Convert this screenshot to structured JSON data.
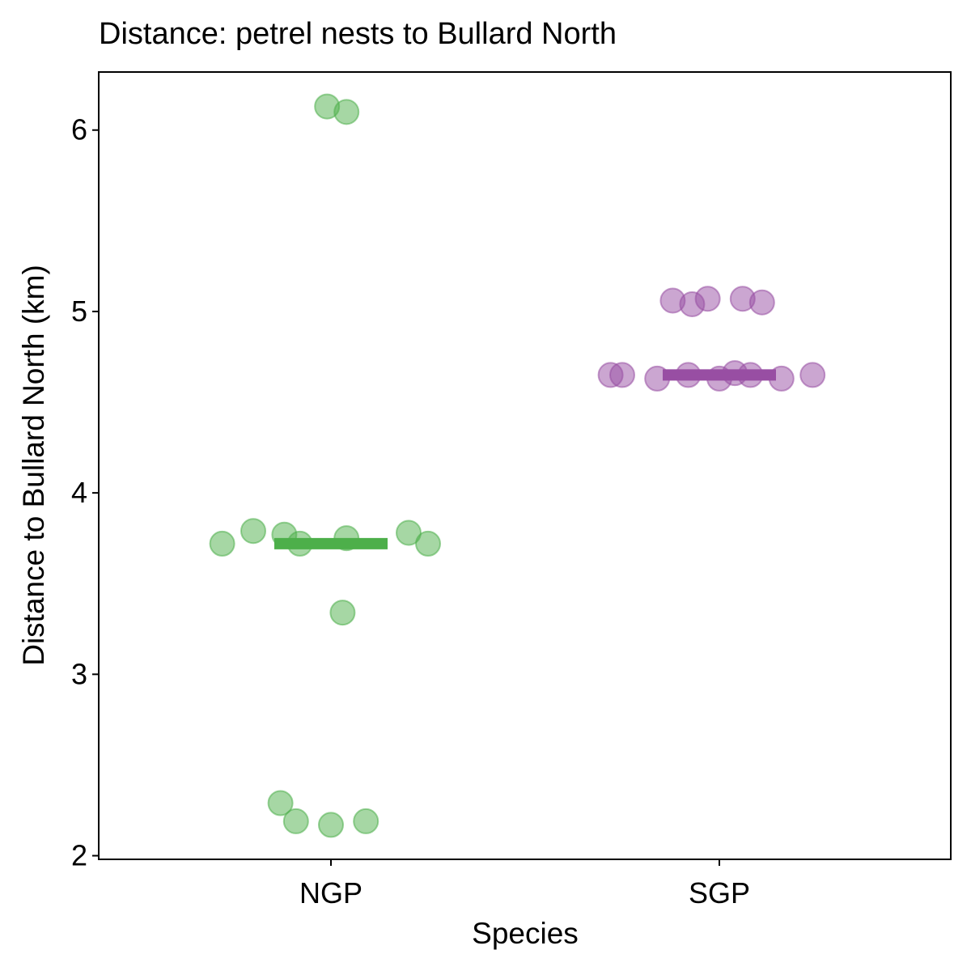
{
  "chart_data": {
    "type": "scatter",
    "subtype": "jittered strip plot with median bars",
    "title": "Distance: petrel nests to Bullard North",
    "xlabel": "Species",
    "ylabel": "Distance to Bullard North (km)",
    "categories": [
      "NGP",
      "SGP"
    ],
    "ylim": [
      1.98,
      6.32
    ],
    "yticks": [
      "2",
      "3",
      "4",
      "5",
      "6"
    ],
    "grid": false,
    "legend": "none",
    "colors": {
      "NGP": "#4daf4a",
      "SGP": "#984ea3"
    },
    "series": [
      {
        "name": "NGP",
        "category_index": 0,
        "median": 3.72,
        "points": [
          {
            "jitter": -0.28,
            "value": 3.72
          },
          {
            "jitter": -0.2,
            "value": 3.79
          },
          {
            "jitter": -0.12,
            "value": 3.77
          },
          {
            "jitter": -0.08,
            "value": 3.72
          },
          {
            "jitter": 0.04,
            "value": 3.75
          },
          {
            "jitter": 0.2,
            "value": 3.78
          },
          {
            "jitter": 0.25,
            "value": 3.72
          },
          {
            "jitter": 0.03,
            "value": 3.34
          },
          {
            "jitter": -0.01,
            "value": 6.13
          },
          {
            "jitter": 0.04,
            "value": 6.1
          },
          {
            "jitter": -0.13,
            "value": 2.29
          },
          {
            "jitter": -0.09,
            "value": 2.19
          },
          {
            "jitter": 0.0,
            "value": 2.17
          },
          {
            "jitter": 0.09,
            "value": 2.19
          }
        ]
      },
      {
        "name": "SGP",
        "category_index": 1,
        "median": 4.65,
        "points": [
          {
            "jitter": -0.28,
            "value": 4.65
          },
          {
            "jitter": -0.25,
            "value": 4.65
          },
          {
            "jitter": -0.16,
            "value": 4.63
          },
          {
            "jitter": -0.08,
            "value": 4.65
          },
          {
            "jitter": 0.0,
            "value": 4.63
          },
          {
            "jitter": 0.04,
            "value": 4.66
          },
          {
            "jitter": 0.08,
            "value": 4.65
          },
          {
            "jitter": 0.16,
            "value": 4.63
          },
          {
            "jitter": 0.24,
            "value": 4.65
          },
          {
            "jitter": -0.12,
            "value": 5.06
          },
          {
            "jitter": -0.07,
            "value": 5.04
          },
          {
            "jitter": -0.03,
            "value": 5.07
          },
          {
            "jitter": 0.06,
            "value": 5.07
          },
          {
            "jitter": 0.11,
            "value": 5.05
          }
        ]
      }
    ]
  }
}
